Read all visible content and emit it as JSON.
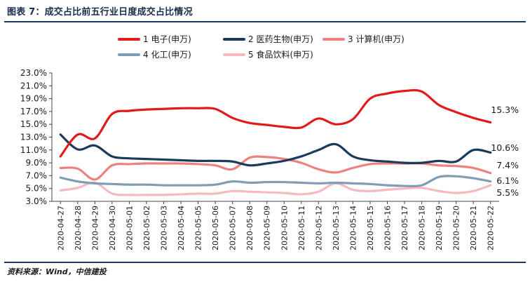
{
  "caption": "图表 7：成交占比前五行业日度成交占比情况",
  "source": "资料来源：Wind，中信建投",
  "chart_data": {
    "type": "line",
    "x": [
      "2020-04-27",
      "2020-04-28",
      "2020-04-29",
      "2020-04-30",
      "2020-05-01",
      "2020-05-02",
      "2020-05-03",
      "2020-05-04",
      "2020-05-05",
      "2020-05-06",
      "2020-05-07",
      "2020-05-08",
      "2020-05-09",
      "2020-05-10",
      "2020-05-11",
      "2020-05-12",
      "2020-05-13",
      "2020-05-14",
      "2020-05-15",
      "2020-05-16",
      "2020-05-17",
      "2020-05-18",
      "2020-05-19",
      "2020-05-20",
      "2020-05-21",
      "2020-05-22"
    ],
    "yticks": [
      "23.0%",
      "21.0%",
      "19.0%",
      "17.0%",
      "15.0%",
      "13.0%",
      "11.0%",
      "9.0%",
      "7.0%",
      "5.0%",
      "3.0%"
    ],
    "ylim": [
      3.0,
      23.0
    ],
    "grid": false,
    "legend_position": "top",
    "series": [
      {
        "name": "1 电子(申万)",
        "color": "#e01b1b",
        "end_label": "15.3%",
        "values": [
          10.0,
          13.4,
          12.8,
          16.6,
          17.1,
          17.3,
          17.4,
          17.5,
          17.5,
          17.4,
          16.0,
          15.2,
          14.9,
          14.6,
          14.5,
          15.9,
          15.0,
          15.8,
          19.0,
          19.8,
          20.2,
          20.1,
          18.0,
          16.9,
          16.0,
          15.3
        ]
      },
      {
        "name": "2 医药生物(申万)",
        "color": "#1b3a5c",
        "end_label": "10.6%",
        "values": [
          13.4,
          11.1,
          11.7,
          10.0,
          9.7,
          9.6,
          9.5,
          9.4,
          9.3,
          9.3,
          9.2,
          8.6,
          8.9,
          9.3,
          10.0,
          11.0,
          11.9,
          10.0,
          9.4,
          9.2,
          9.0,
          9.0,
          9.3,
          9.2,
          11.0,
          10.6
        ]
      },
      {
        "name": "3 计算机(申万)",
        "color": "#f08080",
        "end_label": "7.4%",
        "values": [
          8.2,
          8.1,
          6.4,
          8.6,
          8.8,
          8.9,
          8.9,
          8.9,
          8.8,
          8.6,
          8.0,
          9.8,
          9.9,
          9.6,
          9.0,
          8.0,
          7.5,
          8.2,
          8.8,
          8.9,
          8.9,
          8.9,
          8.6,
          8.5,
          8.2,
          7.4
        ]
      },
      {
        "name": "4 化工(申万)",
        "color": "#7f9db4",
        "end_label": "6.1%",
        "values": [
          6.7,
          6.1,
          5.8,
          5.7,
          5.6,
          5.6,
          5.5,
          5.5,
          5.5,
          5.6,
          6.1,
          5.9,
          6.0,
          6.0,
          5.9,
          5.8,
          5.9,
          5.8,
          5.7,
          5.5,
          5.4,
          5.5,
          6.8,
          6.9,
          6.6,
          6.1
        ]
      },
      {
        "name": "5 食品饮料(申万)",
        "color": "#f7b8bf",
        "end_label": "5.5%",
        "values": [
          4.7,
          5.1,
          5.9,
          4.2,
          4.0,
          4.0,
          4.0,
          4.1,
          4.2,
          4.2,
          4.6,
          4.5,
          4.4,
          4.3,
          4.1,
          4.5,
          5.8,
          4.8,
          4.6,
          4.8,
          5.0,
          5.1,
          4.6,
          4.3,
          4.6,
          5.5
        ]
      }
    ]
  }
}
